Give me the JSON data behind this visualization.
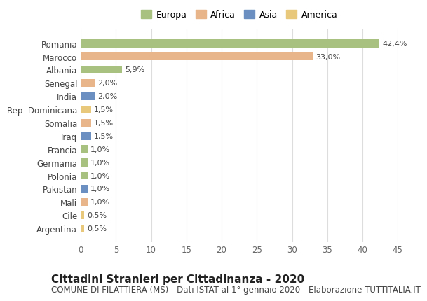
{
  "countries": [
    "Romania",
    "Marocco",
    "Albania",
    "Senegal",
    "India",
    "Rep. Dominicana",
    "Somalia",
    "Iraq",
    "Francia",
    "Germania",
    "Polonia",
    "Pakistan",
    "Mali",
    "Cile",
    "Argentina"
  ],
  "values": [
    42.4,
    33.0,
    5.9,
    2.0,
    2.0,
    1.5,
    1.5,
    1.5,
    1.0,
    1.0,
    1.0,
    1.0,
    1.0,
    0.5,
    0.5
  ],
  "labels": [
    "42,4%",
    "33,0%",
    "5,9%",
    "2,0%",
    "2,0%",
    "1,5%",
    "1,5%",
    "1,5%",
    "1,0%",
    "1,0%",
    "1,0%",
    "1,0%",
    "1,0%",
    "0,5%",
    "0,5%"
  ],
  "continents": [
    "Europa",
    "Africa",
    "Europa",
    "Africa",
    "Asia",
    "America",
    "Africa",
    "Asia",
    "Europa",
    "Europa",
    "Europa",
    "Asia",
    "Africa",
    "America",
    "America"
  ],
  "continent_colors": {
    "Europa": "#a8c080",
    "Africa": "#e8b48a",
    "Asia": "#6a8fc0",
    "America": "#e8c87a"
  },
  "legend_order": [
    "Europa",
    "Africa",
    "Asia",
    "America"
  ],
  "title": "Cittadini Stranieri per Cittadinanza - 2020",
  "subtitle": "COMUNE DI FILATTIERA (MS) - Dati ISTAT al 1° gennaio 2020 - Elaborazione TUTTITALIA.IT",
  "xlim": [
    0,
    45
  ],
  "xticks": [
    0,
    5,
    10,
    15,
    20,
    25,
    30,
    35,
    40,
    45
  ],
  "background_color": "#ffffff",
  "grid_color": "#dddddd",
  "bar_height": 0.6,
  "title_fontsize": 11,
  "subtitle_fontsize": 8.5,
  "label_fontsize": 8,
  "tick_fontsize": 8.5,
  "legend_fontsize": 9
}
